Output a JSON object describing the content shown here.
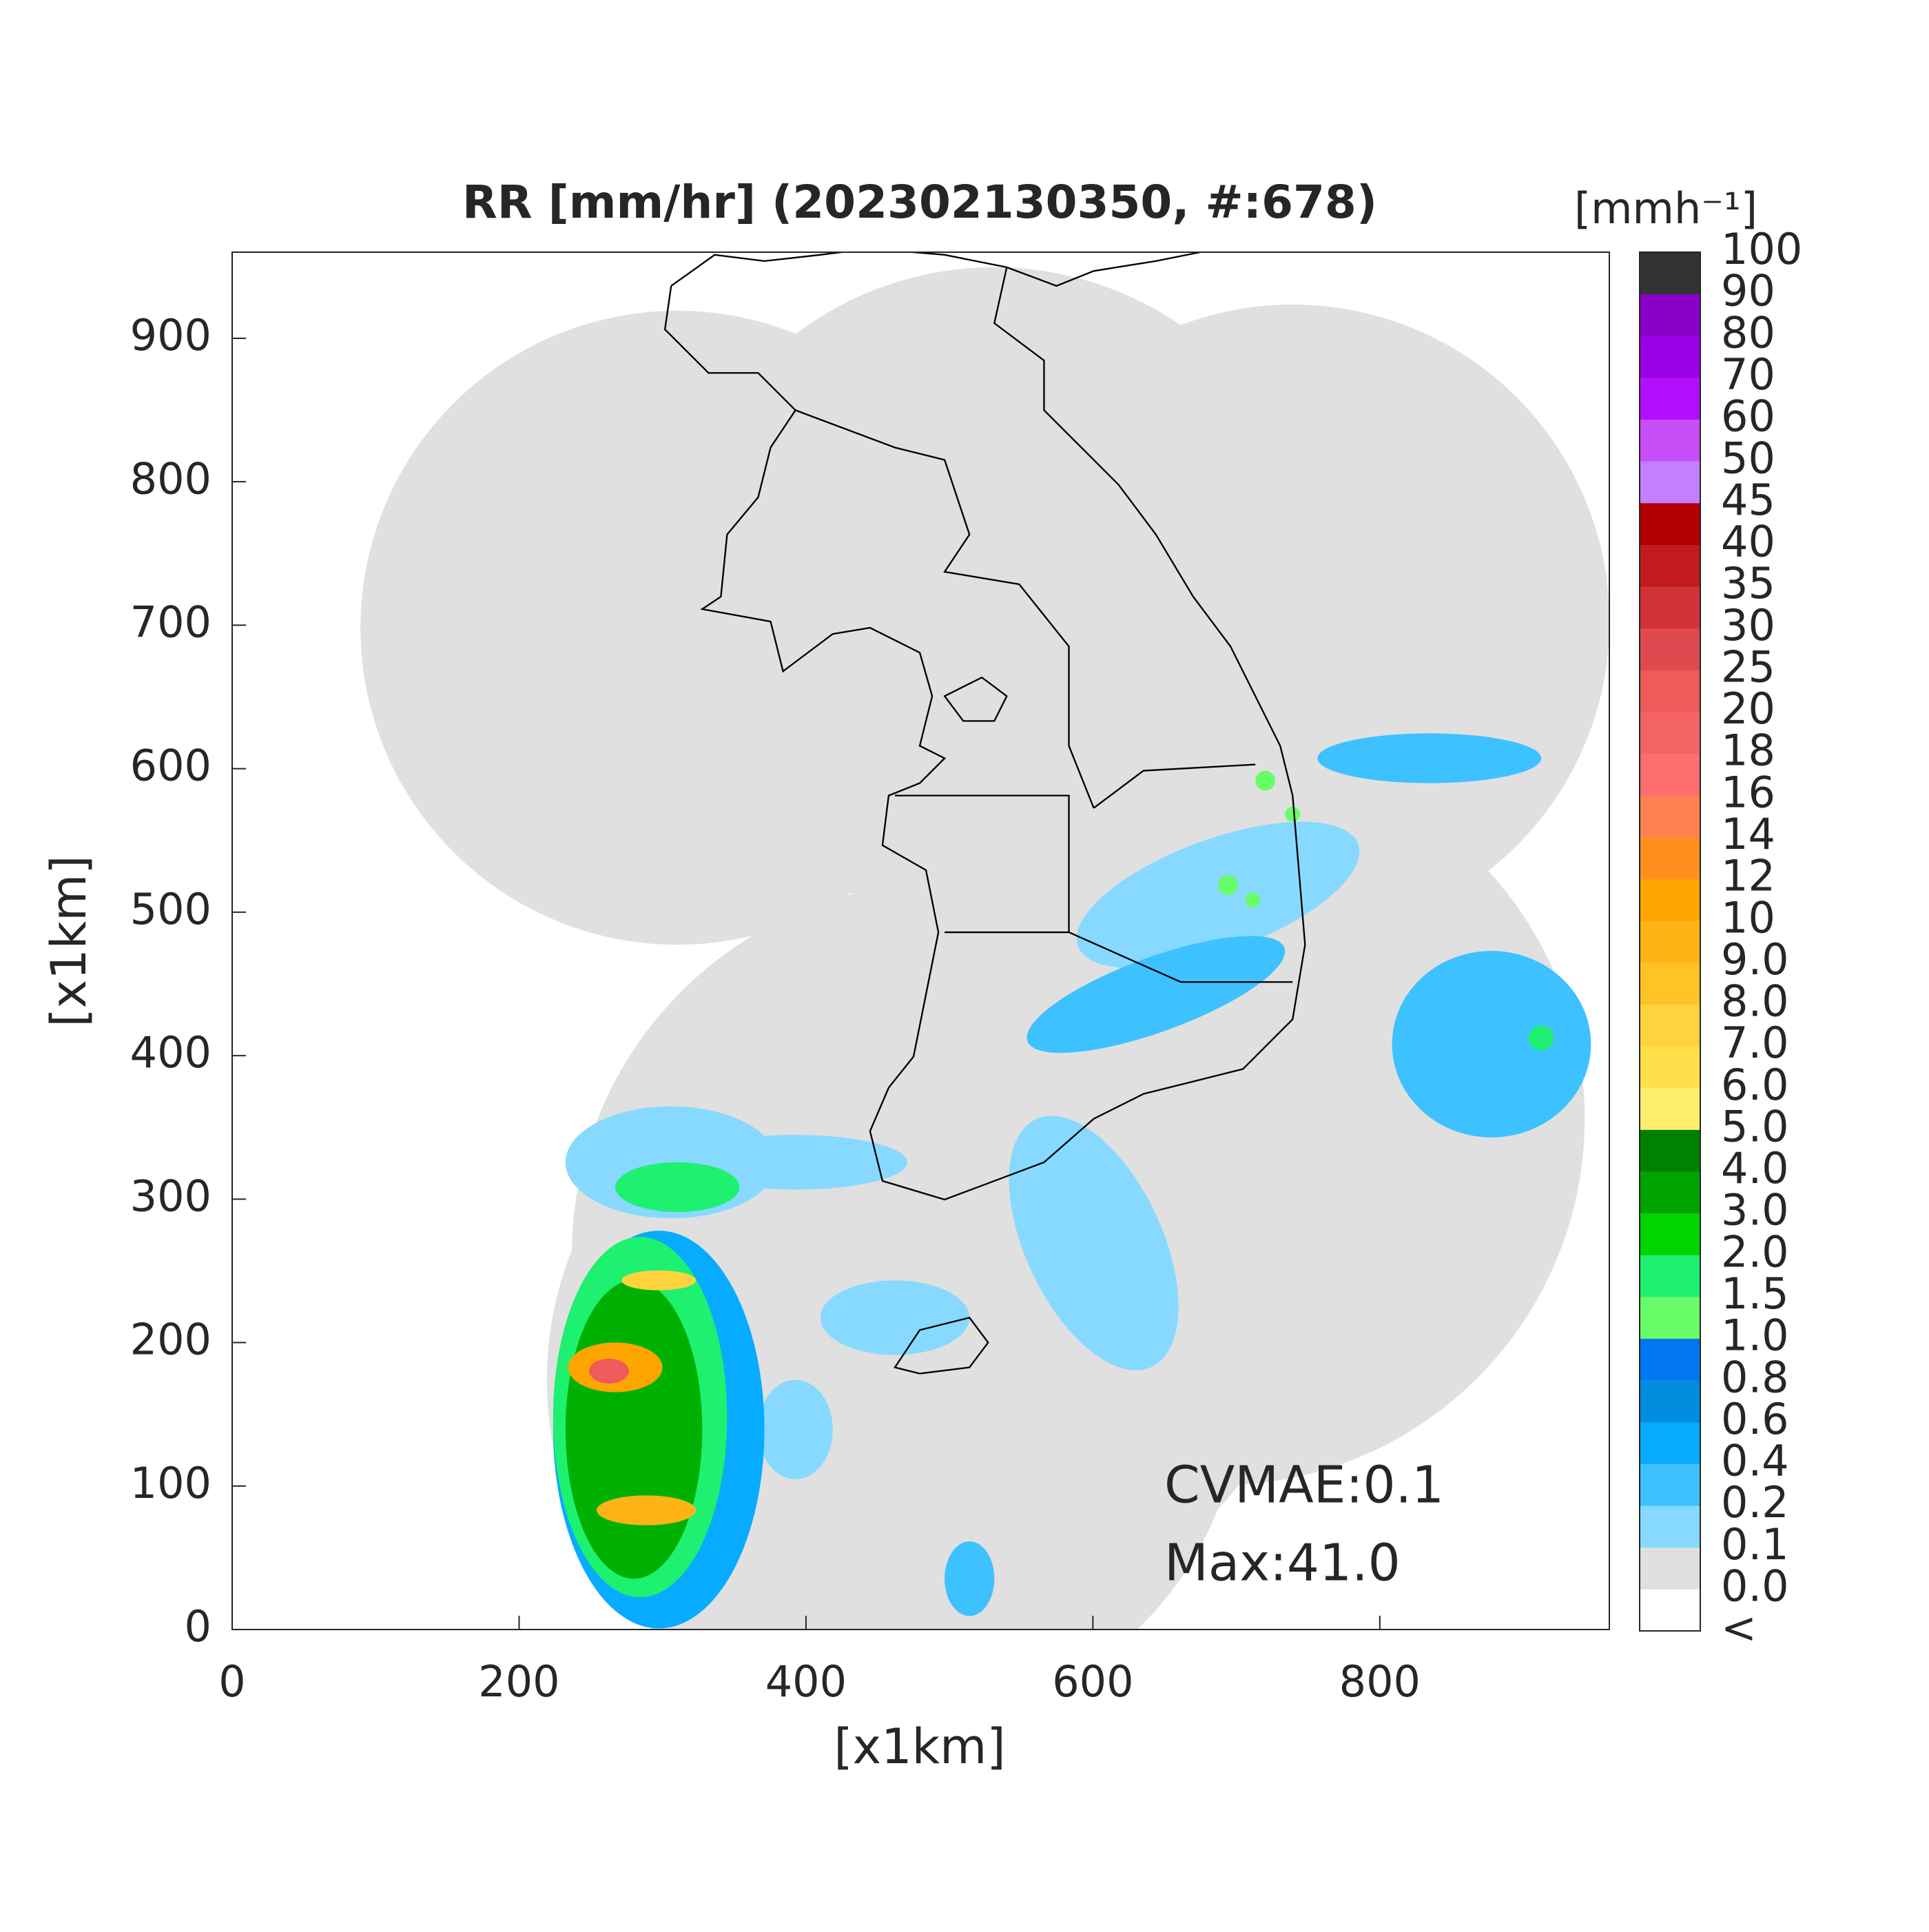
{
  "chart_data": {
    "type": "radar-map",
    "title": "RR [mm/hr] (202302130350, #:678)",
    "x_label": "[x1km]",
    "y_label": "[x1km]",
    "xlim": [
      0,
      960
    ],
    "ylim": [
      0,
      960
    ],
    "xticks": [
      0,
      200,
      400,
      600,
      800
    ],
    "yticks": [
      0,
      100,
      200,
      300,
      400,
      500,
      600,
      700,
      800,
      900
    ],
    "annotations": [
      "CVMAE:0.1",
      "Max:41.0"
    ],
    "colorbar": {
      "title": "[mmh⁻¹]",
      "labels": [
        "<",
        "0.0",
        "0.1",
        "0.2",
        "0.4",
        "0.6",
        "0.8",
        "1.0",
        "1.5",
        "2.0",
        "3.0",
        "4.0",
        "5.0",
        "6.0",
        "7.0",
        "8.0",
        "9.0",
        "10",
        "12",
        "14",
        "16",
        "18",
        "20",
        "25",
        "30",
        "35",
        "40",
        "45",
        "50",
        "60",
        "70",
        "80",
        "90",
        "100"
      ],
      "colors": [
        "#ffffff",
        "#e0e0e0",
        "#87d9ff",
        "#3ec1ff",
        "#07abff",
        "#008dde",
        "#0077f0",
        "#69fc69",
        "#1ef070",
        "#00d500",
        "#00a400",
        "#008000",
        "#ffee6e",
        "#ffe04a",
        "#ffd23e",
        "#ffc326",
        "#ffb317",
        "#ffa500",
        "#ff9020",
        "#ff8050",
        "#ff6e6e",
        "#f56464",
        "#ef5a5a",
        "#de4a50",
        "#d23238",
        "#c31a1e",
        "#b30000",
        "#c37fff",
        "#c84ef7",
        "#b30fff",
        "#9a00e6",
        "#8a00c8",
        "#333333"
      ]
    }
  }
}
